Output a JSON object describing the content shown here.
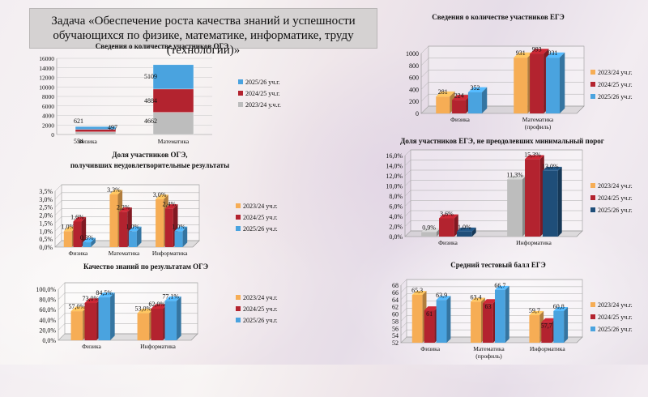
{
  "page": {
    "title": "Задача «Обеспечение роста качества знаний и успешности обучающихся по физике, математике, информатике, труду (технологии)»"
  },
  "colors": {
    "y2324": "#f6ad55",
    "y2425": "#b3232f",
    "y2526": "#4aa3df",
    "gray": "#bdbdbd",
    "navy": "#1f4e79"
  },
  "chart_data": [
    {
      "id": "oge-participants",
      "type": "bar",
      "stacked": true,
      "title": "Сведения о количестве  участников  ОГЭ",
      "categories": [
        "Физика",
        "Математика"
      ],
      "ylim": [
        0,
        16000
      ],
      "yticks": [
        0,
        2000,
        4000,
        6000,
        8000,
        10000,
        12000,
        14000,
        16000
      ],
      "series": [
        {
          "name": "2023/24 у.ч.г.",
          "values": [
            554,
            4662
          ]
        },
        {
          "name": "2024/25 уч.г.",
          "values": [
            497,
            4884
          ]
        },
        {
          "name": "2025/26 уч.г.",
          "values": [
            621,
            5109
          ]
        }
      ],
      "legend": "right"
    },
    {
      "id": "oge-unsatisfactory",
      "type": "bar",
      "title": "Доля участников ОГЭ, получивших неудовлетворительные  результаты",
      "categories": [
        "Физика",
        "Математика",
        "Информатика"
      ],
      "ylim": [
        0,
        3.5
      ],
      "yticks": [
        0,
        0.5,
        1.0,
        1.5,
        2.0,
        2.5,
        3.0,
        3.5
      ],
      "series": [
        {
          "name": "2023/24 уч.г.",
          "values": [
            1.0,
            3.3,
            3.0
          ]
        },
        {
          "name": "2024/25 уч.г.",
          "values": [
            1.6,
            2.2,
            2.4
          ]
        },
        {
          "name": "2025/26 уч.г.",
          "values": [
            0.3,
            1.0,
            1.0
          ]
        }
      ],
      "legend": "right"
    },
    {
      "id": "oge-quality",
      "type": "bar",
      "title": "Качество знаний по результатам ОГЭ",
      "categories": [
        "Физика",
        "Информатика"
      ],
      "ylim": [
        0,
        100
      ],
      "yticks": [
        0,
        20,
        40,
        60,
        80,
        100
      ],
      "series": [
        {
          "name": "2023/24 уч.г.",
          "values": [
            57.0,
            53.0
          ]
        },
        {
          "name": "2024/25 уч.г.",
          "values": [
            73.0,
            62.0
          ]
        },
        {
          "name": "2025/26 уч.г.",
          "values": [
            84.5,
            77.1
          ]
        }
      ],
      "legend": "right"
    },
    {
      "id": "ege-participants",
      "type": "bar",
      "title": "Сведения о количестве  участников ЕГЭ",
      "categories": [
        "Физика",
        "Математика (профиль)"
      ],
      "ylim": [
        0,
        1000
      ],
      "yticks": [
        0,
        200,
        400,
        600,
        800,
        1000
      ],
      "series": [
        {
          "name": "2023/24 уч.г.",
          "values": [
            281,
            931
          ]
        },
        {
          "name": "2024/25 уч.г.",
          "values": [
            224,
            993
          ]
        },
        {
          "name": "2025/26 уч.г.",
          "values": [
            352,
            931
          ]
        }
      ],
      "legend": "right"
    },
    {
      "id": "ege-below-min",
      "type": "bar",
      "title": "Доля участников ЕГЭ, не преодолевших минимальный порог",
      "categories": [
        "Физика",
        "Информатика"
      ],
      "ylim": [
        0,
        16
      ],
      "yticks": [
        0,
        2,
        4,
        6,
        8,
        10,
        12,
        14,
        16
      ],
      "series": [
        {
          "name": "2023/24 уч.г.",
          "values": [
            0.9,
            11.3
          ]
        },
        {
          "name": "2024/25 уч.г.",
          "values": [
            3.6,
            15.3
          ]
        },
        {
          "name": "2025/26 уч.г.",
          "values": [
            1.0,
            13.0
          ]
        }
      ],
      "legend": "right"
    },
    {
      "id": "ege-avg-score",
      "type": "bar",
      "title": "Средний тестовый балл ЕГЭ",
      "categories": [
        "Физика",
        "Математика (профиль)",
        "Информатика"
      ],
      "ylim": [
        52,
        68
      ],
      "yticks": [
        52,
        54,
        56,
        58,
        60,
        62,
        64,
        66,
        68
      ],
      "series": [
        {
          "name": "2023/24 уч.г.",
          "values": [
            65.3,
            63.4,
            59.7
          ]
        },
        {
          "name": "2024/25 уч.г.",
          "values": [
            61,
            63,
            57.7
          ]
        },
        {
          "name": "2025/26 уч.г.",
          "values": [
            63.9,
            66.7,
            60.8
          ]
        }
      ],
      "legend": "right"
    }
  ]
}
